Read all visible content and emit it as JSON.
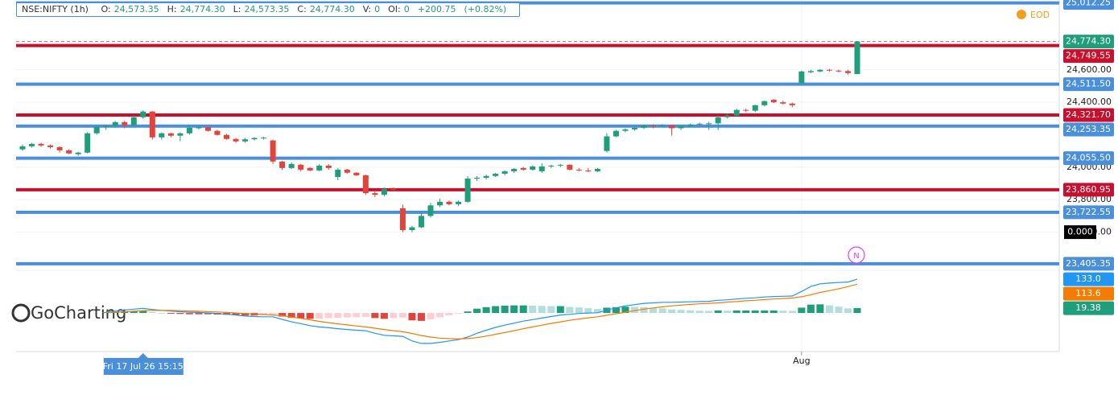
{
  "header": {
    "symbol": "NSE:NIFTY (1h)",
    "fields": [
      [
        "O:",
        "24,573.35"
      ],
      [
        "H:",
        "24,774.30"
      ],
      [
        "L:",
        "24,573.35"
      ],
      [
        "C:",
        "24,774.30"
      ],
      [
        "V:",
        "0"
      ],
      [
        "OI:",
        "0"
      ]
    ],
    "change": "+200.75",
    "change_pct": "(+0.82%)"
  },
  "watermark": "GoCharting",
  "eod_badge": "EOD",
  "news_marker": "N",
  "chart_data": {
    "type": "candlestick",
    "categories": [
      null,
      null,
      null,
      null,
      null,
      null,
      null,
      null,
      null,
      null,
      null,
      null,
      null,
      null,
      null,
      null,
      null,
      null,
      null,
      null,
      null,
      null,
      null,
      null,
      null,
      null,
      null,
      null,
      null,
      null,
      null,
      null,
      null,
      null,
      null,
      null,
      null,
      null,
      null,
      null,
      null,
      null,
      null,
      null,
      null,
      null,
      null,
      null,
      null,
      null,
      null,
      null,
      null,
      null,
      null,
      null,
      null,
      null,
      null,
      null,
      null,
      null,
      null,
      null,
      null,
      null,
      null,
      null,
      null,
      null,
      null,
      null,
      null,
      null,
      null,
      null,
      null,
      null,
      null,
      null,
      null,
      null,
      null,
      null,
      "Aug",
      null,
      null,
      null,
      null,
      null,
      null
    ],
    "open": [
      24110,
      24129,
      24144,
      24134,
      24124,
      24104,
      24080,
      24090,
      24209,
      24248,
      24255,
      24278,
      24258,
      24308,
      24343,
      24184,
      24209,
      24194,
      24209,
      24240,
      24246,
      24224,
      24199,
      24174,
      24159,
      24172,
      24180,
      24165,
      24035,
      23995,
      24015,
      23995,
      23980,
      24010,
      23940,
      23985,
      23966,
      23950,
      23840,
      23830,
      23866,
      23747,
      23613,
      23630,
      23700,
      23765,
      23787,
      23772,
      23787,
      23930,
      23935,
      23946,
      23960,
      23975,
      23995,
      23985,
      23975,
      24005,
      24010,
      24015,
      23985,
      23980,
      23975,
      24100,
      24190,
      24224,
      24233,
      24243,
      24258,
      24253,
      24258,
      24240,
      24253,
      24263,
      24268,
      24270,
      24308,
      24318,
      24353,
      24348,
      24382,
      24415,
      24400,
      24392,
      24520,
      24585,
      24590,
      24600,
      24595,
      24592,
      24573.35
    ],
    "high": [
      24140,
      24150,
      24150,
      24140,
      24128,
      24110,
      24095,
      24215,
      24255,
      24262,
      24285,
      24285,
      24320,
      24350,
      24345,
      24215,
      24212,
      24215,
      24250,
      24252,
      24250,
      24230,
      24205,
      24180,
      24180,
      24185,
      24188,
      24170,
      24040,
      24030,
      24020,
      24000,
      24020,
      24020,
      23995,
      23990,
      23970,
      23955,
      23860,
      23875,
      23875,
      23770,
      23640,
      23720,
      23780,
      23805,
      23795,
      23795,
      23945,
      23945,
      23955,
      23965,
      23980,
      23995,
      24002,
      24010,
      24025,
      24015,
      24020,
      24018,
      23995,
      23995,
      23995,
      24210,
      24230,
      24240,
      24250,
      24262,
      24265,
      24265,
      24262,
      24260,
      24268,
      24275,
      24280,
      24320,
      24330,
      24360,
      24360,
      24385,
      24410,
      24420,
      24410,
      24398,
      24595,
      24600,
      24605,
      24605,
      24600,
      24600,
      24774.3
    ],
    "low": [
      24100,
      24120,
      24125,
      24115,
      24090,
      24080,
      24070,
      24085,
      24200,
      24230,
      24245,
      24240,
      24250,
      24300,
      24170,
      24170,
      24185,
      24160,
      24200,
      24232,
      24220,
      24195,
      24170,
      24150,
      24150,
      24165,
      24170,
      24020,
      23985,
      23990,
      23975,
      23975,
      23975,
      23985,
      23920,
      23960,
      23946,
      23830,
      23815,
      23820,
      23855,
      23600,
      23600,
      23625,
      23690,
      23755,
      23765,
      23760,
      23780,
      23915,
      23925,
      23940,
      23950,
      23965,
      23978,
      23980,
      23965,
      23995,
      24000,
      23980,
      23975,
      23970,
      23970,
      24090,
      24185,
      24215,
      24225,
      24235,
      24240,
      24245,
      24195,
      24230,
      24245,
      24255,
      24230,
      24230,
      24300,
      24310,
      24340,
      24340,
      24375,
      24395,
      24385,
      24370,
      24510,
      24580,
      24585,
      24590,
      24585,
      24570,
      24573.35
    ],
    "close": [
      24129,
      24144,
      24134,
      24124,
      24104,
      24085,
      24090,
      24209,
      24248,
      24255,
      24278,
      24258,
      24308,
      24343,
      24184,
      24209,
      24194,
      24209,
      24243,
      24246,
      24224,
      24199,
      24174,
      24159,
      24172,
      24180,
      24182,
      24035,
      23995,
      24020,
      23985,
      23980,
      24010,
      23995,
      23985,
      23966,
      23950,
      23840,
      23830,
      23866,
      23862,
      23613,
      23630,
      23700,
      23765,
      23787,
      23772,
      23787,
      23930,
      23935,
      23946,
      23960,
      23975,
      23990,
      23985,
      24005,
      24005,
      24010,
      24015,
      23985,
      23980,
      23975,
      23990,
      24190,
      24224,
      24233,
      24243,
      24258,
      24253,
      24258,
      24240,
      24253,
      24263,
      24268,
      24270,
      24308,
      24318,
      24353,
      24348,
      24382,
      24407,
      24400,
      24392,
      24382,
      24590,
      24592,
      24600,
      24595,
      24592,
      24580,
      24774.3
    ],
    "up_color": "#1f9e7b",
    "down_color": "#e2433a",
    "ylim": [
      23375,
      25030
    ],
    "yticks": [
      {
        "value": 24600,
        "label": "24,600.00"
      },
      {
        "value": 24400,
        "label": "24,400.00"
      },
      {
        "value": 24000,
        "label": "24,000.00"
      },
      {
        "value": 23800,
        "label": "23,800.00"
      },
      {
        "value": 23600,
        "label": "23,600.00"
      }
    ],
    "grid": true,
    "levels": [
      {
        "value": 25012.25,
        "label": "25,012.25",
        "color": "#4a8fdc"
      },
      {
        "value": 24749.55,
        "label": "24,749.55",
        "color": "#c8102e"
      },
      {
        "value": 24511.5,
        "label": "24,511.50",
        "color": "#4a8fdc"
      },
      {
        "value": 24321.7,
        "label": "24,321.70",
        "color": "#c8102e"
      },
      {
        "value": 24253.35,
        "label": "24,253.35",
        "color": "#4a8fdc"
      },
      {
        "value": 24055.5,
        "label": "24,055.50",
        "color": "#4a8fdc"
      },
      {
        "value": 23860.95,
        "label": "23,860.95",
        "color": "#c8102e"
      },
      {
        "value": 23722.55,
        "label": "23,722.55",
        "color": "#4a8fdc"
      },
      {
        "value": 23405.35,
        "label": "23,405.35",
        "color": "#4a8fdc"
      }
    ],
    "last_price": {
      "value": 24774.3,
      "label": "24,774.30",
      "color": "#1f9e7b"
    },
    "crosshair_price": {
      "value": 23600,
      "label": "0.000"
    },
    "crosshair_time": "Fri 17 Jul 26 15:15",
    "macd": {
      "ylim": [
        -152,
        162
      ],
      "series": [
        {
          "color": "#2196f3",
          "values": [
            null,
            null,
            null,
            null,
            null,
            null,
            null,
            null,
            null,
            5,
            8,
            12,
            15,
            18,
            14,
            10,
            8,
            5,
            3,
            2,
            0,
            -2,
            -5,
            -8,
            -12,
            -14,
            -15,
            -15,
            -25,
            -35,
            -42,
            -50,
            -55,
            -58,
            -62,
            -65,
            -68,
            -70,
            -80,
            -88,
            -90,
            -92,
            -110,
            -120,
            -120,
            -116,
            -110,
            -105,
            -95,
            -80,
            -68,
            -57,
            -48,
            -40,
            -32,
            -26,
            -20,
            -14,
            -8,
            -5,
            -2,
            0,
            1,
            12,
            20,
            28,
            33,
            38,
            40,
            42,
            42,
            43,
            44,
            45,
            46,
            50,
            52,
            55,
            58,
            60,
            63,
            65,
            66,
            67,
            85,
            105,
            115,
            118,
            120,
            122,
            133.0
          ]
        },
        {
          "color": "#f57c00",
          "values": [
            null,
            null,
            null,
            null,
            null,
            null,
            null,
            null,
            null,
            2,
            3,
            5,
            7,
            9,
            10,
            10,
            10,
            9,
            8,
            7,
            5,
            4,
            2,
            0,
            -2,
            -4,
            -6,
            -8,
            -11,
            -16,
            -21,
            -27,
            -33,
            -38,
            -43,
            -47,
            -51,
            -55,
            -60,
            -65,
            -70,
            -74,
            -81,
            -89,
            -95,
            -99,
            -101,
            -102,
            -101,
            -97,
            -91,
            -84,
            -77,
            -70,
            -62,
            -55,
            -48,
            -41,
            -35,
            -29,
            -24,
            -19,
            -15,
            -9,
            -3,
            3,
            9,
            15,
            20,
            24,
            28,
            31,
            34,
            36,
            38,
            40,
            43,
            45,
            48,
            50,
            53,
            55,
            57,
            59,
            64,
            72,
            81,
            88,
            95,
            104,
            113.6
          ]
        }
      ],
      "histogram": {
        "colors": [
          "#1f9e7b",
          "#b2dfdb",
          "#ffcdd2",
          "#e2433a"
        ],
        "values": [
          null,
          null,
          null,
          null,
          null,
          null,
          null,
          null,
          null,
          3,
          5,
          7,
          8,
          9,
          4,
          0,
          -2,
          -4,
          -5,
          -5,
          -5,
          -6,
          -7,
          -8,
          -10,
          -10,
          -9,
          -7,
          -14,
          -19,
          -21,
          -23,
          -22,
          -20,
          -19,
          -18,
          -17,
          -15,
          -20,
          -23,
          -20,
          -18,
          -29,
          -31,
          -25,
          -17,
          -9,
          -3,
          6,
          17,
          23,
          27,
          29,
          30,
          30,
          29,
          28,
          27,
          27,
          24,
          22,
          19,
          16,
          21,
          23,
          25,
          24,
          23,
          20,
          18,
          14,
          12,
          10,
          9,
          8,
          10,
          9,
          10,
          10,
          10,
          10,
          10,
          9,
          8,
          21,
          33,
          34,
          30,
          25,
          18,
          19.38
        ]
      },
      "labels": [
        {
          "value": 133,
          "label": "133.0",
          "color": "#2196f3"
        },
        {
          "value": 113.6,
          "label": "113.6",
          "color": "#f57c00"
        },
        {
          "value": 19.38,
          "label": "19.38",
          "color": "#1f9e7b"
        }
      ]
    }
  }
}
